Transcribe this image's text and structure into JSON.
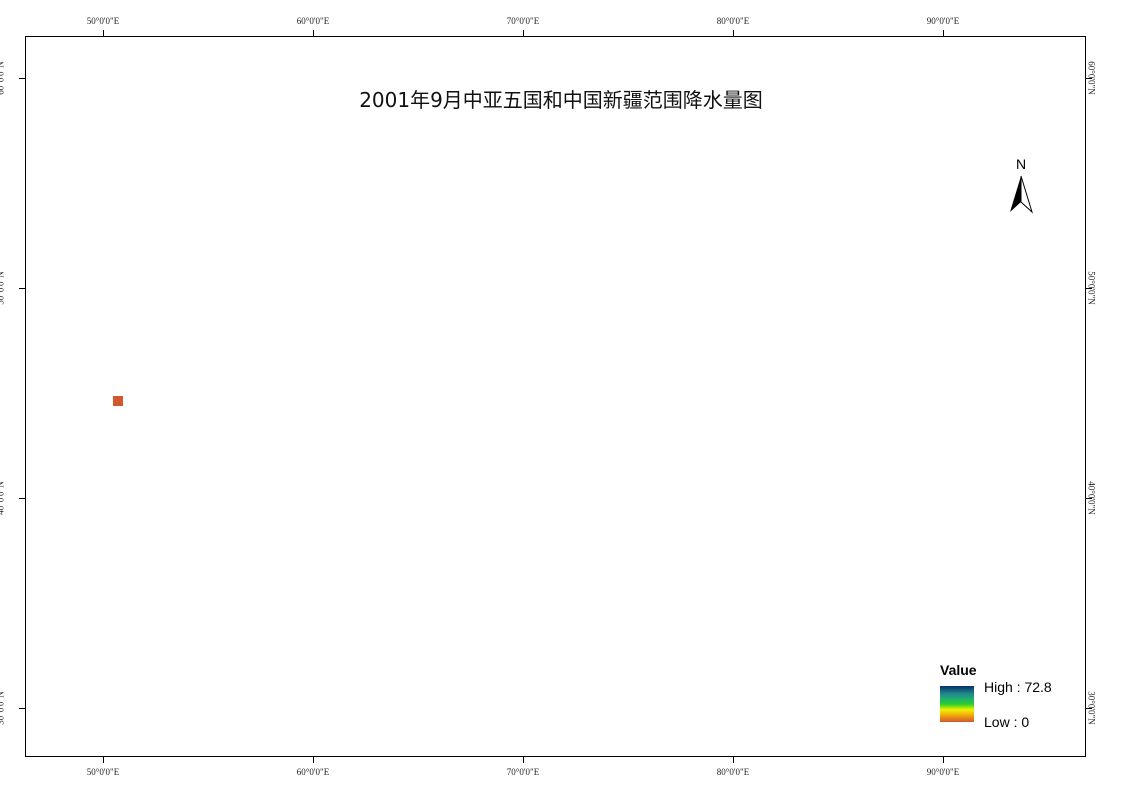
{
  "map": {
    "title": "2001年9月中亚五国和中国新疆范围降水量图",
    "graticule": {
      "longitudes": [
        "50°0'0\"E",
        "60°0'0\"E",
        "70°0'0\"E",
        "80°0'0\"E",
        "90°0'0\"E"
      ],
      "latitudes": [
        "60°0'0\"N",
        "50°0'0\"N",
        "40°0'0\"N",
        "30°0'0\"N"
      ]
    },
    "north_arrow_label": "N",
    "legend": {
      "title": "Value",
      "high_label": "High : 72.8",
      "low_label": "Low : 0"
    },
    "colors": {
      "high": "#08306b",
      "mid_high": "#1f8a8a",
      "green": "#2ad02a",
      "yellow": "#f1f101",
      "orange": "#f0a40a",
      "low": "#d2572f"
    }
  }
}
